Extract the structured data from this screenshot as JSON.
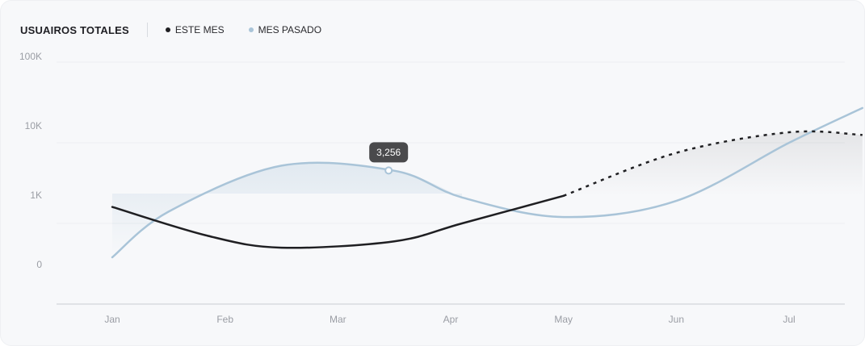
{
  "header": {
    "title": "USUAIROS TOTALES",
    "legend": [
      {
        "label": "ESTE MES",
        "color": "#1f1f22"
      },
      {
        "label": "MES PASADO",
        "color": "#a9c4d8"
      }
    ]
  },
  "tooltip": {
    "label": "3,256",
    "color": "#4a4a4c"
  },
  "chart_data": {
    "type": "line",
    "title": "USUAIROS TOTALES",
    "x": [
      "Jan",
      "Feb",
      "Mar",
      "Apr",
      "May",
      "Jun",
      "Jul"
    ],
    "y_ticks": [
      "100K",
      "10K",
      "1K",
      "0"
    ],
    "y_scale": "log",
    "grid": true,
    "legend_position": "top-left",
    "series": [
      {
        "name": "ESTE MES",
        "color": "#1f1f22",
        "x": [
          0,
          0.85,
          1.5,
          2.5,
          3.1,
          4,
          5,
          6,
          6.65
        ],
        "y": [
          1.6,
          0.7,
          0.5,
          0.6,
          1.0,
          2.2,
          7.5,
          13.5,
          12.5
        ],
        "projected_from_index": 5
      },
      {
        "name": "MES PASADO",
        "color": "#a9c4d8",
        "x": [
          0,
          0.5,
          1.5,
          2.5,
          3.1,
          4,
          5,
          6,
          6.65
        ],
        "y": [
          0.38,
          1.4,
          5.2,
          4.5,
          2.1,
          1.2,
          1.9,
          10,
          27
        ]
      }
    ],
    "highlight": {
      "series": "MES PASADO",
      "x": 2.45,
      "label": "3,256"
    }
  }
}
